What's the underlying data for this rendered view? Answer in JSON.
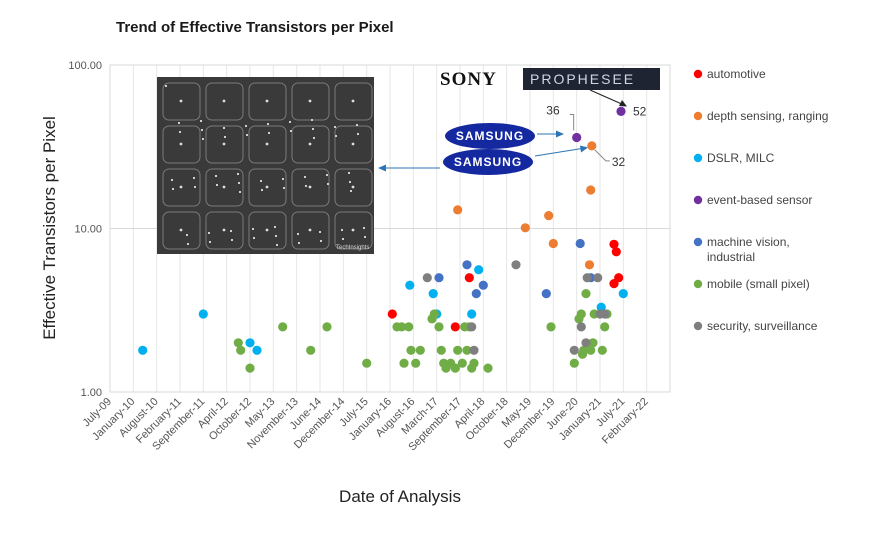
{
  "chart_data": {
    "type": "scatter",
    "title": "Trend of Effective Transistors per Pixel",
    "xlabel": "Date of Analysis",
    "ylabel": "Effective Transistors per Pixel",
    "yscale": "log",
    "ylim": [
      1,
      100
    ],
    "y_ticks": [
      "1.00",
      "10.00",
      "100.00"
    ],
    "x_tick_labels": [
      "July-09",
      "January-10",
      "August-10",
      "February-11",
      "September-11",
      "April-12",
      "October-12",
      "May-13",
      "November-13",
      "June-14",
      "December-14",
      "July-15",
      "January-16",
      "August-16",
      "March-17",
      "September-17",
      "April-18",
      "October-18",
      "May-19",
      "December-19",
      "June-20",
      "January-21",
      "July-21",
      "February-22"
    ],
    "legend": {
      "position": "right",
      "items": [
        {
          "key": "automotive",
          "label": "automotive"
        },
        {
          "key": "depth",
          "label": "depth sensing, ranging"
        },
        {
          "key": "dslr",
          "label": "DSLR, MILC"
        },
        {
          "key": "event",
          "label": "event-based sensor"
        },
        {
          "key": "machine",
          "label": "machine vision,",
          "label2": "industrial"
        },
        {
          "key": "mobile",
          "label": "mobile (small pixel)"
        },
        {
          "key": "security",
          "label": "security, surveillance"
        }
      ]
    },
    "colors": {
      "automotive": "#ff0000",
      "depth": "#ed7d31",
      "dslr": "#00b0f0",
      "event": "#7030a0",
      "machine": "#4472c4",
      "mobile": "#70ad47",
      "security": "#7f7f7f"
    },
    "series": [
      {
        "name": "automotive",
        "points": [
          [
            12.1,
            3
          ],
          [
            14.8,
            2.5
          ],
          [
            15.4,
            5
          ],
          [
            21.6,
            8
          ],
          [
            21.7,
            7.2
          ],
          [
            21.6,
            4.6
          ],
          [
            21.8,
            5
          ]
        ]
      },
      {
        "name": "depth",
        "points": [
          [
            14.9,
            13
          ],
          [
            17.8,
            10.1
          ],
          [
            18.8,
            12
          ],
          [
            19.0,
            8.1
          ],
          [
            20.55,
            6
          ],
          [
            20.65,
            32
          ],
          [
            20.6,
            17.2
          ]
        ]
      },
      {
        "name": "dslr",
        "points": [
          [
            1.4,
            1.8
          ],
          [
            4.0,
            3
          ],
          [
            6.0,
            2
          ],
          [
            6.3,
            1.8
          ],
          [
            12.85,
            4.5
          ],
          [
            13.85,
            4
          ],
          [
            14.0,
            3
          ],
          [
            15.8,
            5.6
          ],
          [
            15.5,
            3
          ],
          [
            21.05,
            3.3
          ],
          [
            22.0,
            4
          ]
        ]
      },
      {
        "name": "event",
        "points": [
          [
            20.0,
            36
          ],
          [
            21.9,
            52
          ]
        ]
      },
      {
        "name": "machine",
        "points": [
          [
            14.1,
            5
          ],
          [
            15.3,
            6
          ],
          [
            15.7,
            4
          ],
          [
            16.0,
            4.5
          ],
          [
            18.7,
            4
          ],
          [
            20.15,
            8.1
          ],
          [
            20.6,
            5
          ]
        ]
      },
      {
        "name": "mobile",
        "points": [
          [
            5.5,
            2
          ],
          [
            5.6,
            1.8
          ],
          [
            6.0,
            1.4
          ],
          [
            7.4,
            2.5
          ],
          [
            8.6,
            1.8
          ],
          [
            9.3,
            2.5
          ],
          [
            11.0,
            1.5
          ],
          [
            12.3,
            2.5
          ],
          [
            12.5,
            2.5
          ],
          [
            12.6,
            1.5
          ],
          [
            12.8,
            2.5
          ],
          [
            12.9,
            1.8
          ],
          [
            13.1,
            1.5
          ],
          [
            13.3,
            1.8
          ],
          [
            13.8,
            2.8
          ],
          [
            13.9,
            3
          ],
          [
            14.1,
            2.5
          ],
          [
            14.2,
            1.8
          ],
          [
            14.3,
            1.5
          ],
          [
            14.4,
            1.4
          ],
          [
            14.6,
            1.5
          ],
          [
            14.8,
            1.4
          ],
          [
            14.9,
            1.8
          ],
          [
            15.1,
            1.5
          ],
          [
            15.2,
            2.5
          ],
          [
            15.3,
            1.8
          ],
          [
            15.4,
            2.5
          ],
          [
            15.5,
            1.4
          ],
          [
            15.6,
            1.5
          ],
          [
            16.2,
            1.4
          ],
          [
            18.9,
            2.5
          ],
          [
            19.9,
            1.5
          ],
          [
            20.1,
            2.8
          ],
          [
            20.2,
            3
          ],
          [
            20.3,
            1.8
          ],
          [
            20.25,
            1.7
          ],
          [
            20.4,
            4
          ],
          [
            20.6,
            1.8
          ],
          [
            20.7,
            2.0
          ],
          [
            20.75,
            3
          ],
          [
            21.2,
            2.5
          ],
          [
            21.3,
            3
          ],
          [
            21.1,
            1.8
          ]
        ]
      },
      {
        "name": "security",
        "points": [
          [
            13.6,
            5
          ],
          [
            15.5,
            2.5
          ],
          [
            15.6,
            1.8
          ],
          [
            17.4,
            6
          ],
          [
            19.9,
            1.8
          ],
          [
            20.2,
            2.5
          ],
          [
            20.4,
            2.0
          ],
          [
            20.45,
            5
          ],
          [
            20.9,
            5
          ],
          [
            21.0,
            3
          ],
          [
            21.2,
            3
          ]
        ]
      }
    ],
    "annotations": [
      {
        "text": "36",
        "x": 20.0,
        "y": 36
      },
      {
        "text": "32",
        "x": 20.65,
        "y": 32
      },
      {
        "text": "52",
        "x": 21.9,
        "y": 52
      }
    ]
  },
  "logos": {
    "sony": "SONY",
    "prophesee": "PROPHESEE",
    "samsung_top": "SAMSUNG",
    "samsung_bottom": "SAMSUNG",
    "inset_watermark": "TechInsights"
  }
}
